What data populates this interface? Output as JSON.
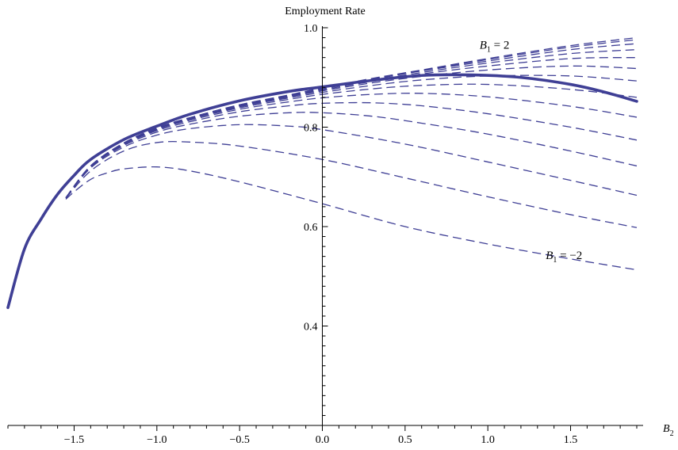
{
  "chart_data": {
    "type": "line",
    "title": "",
    "ylabel": "Employment Rate",
    "xlabel": "B",
    "xlabel_sub": "2",
    "xlim": [
      -1.9,
      1.9
    ],
    "ylim": [
      0.2,
      1.0
    ],
    "grid": false,
    "x_ticks": [
      -1.5,
      -1.0,
      -0.5,
      0.0,
      0.5,
      1.0,
      1.5
    ],
    "x_tick_labels": [
      "−1.5",
      "−1.0",
      "−0.5",
      "0.0",
      "0.5",
      "1.0",
      "1.5"
    ],
    "y_ticks": [
      0.4,
      0.6,
      0.8,
      1.0
    ],
    "y_tick_labels": [
      "0.4",
      "0.6",
      "0.8",
      "1.0"
    ],
    "annotations": [
      {
        "base": "B",
        "sub": "1",
        "rest": " = 2",
        "x": 0.95,
        "y": 0.958
      },
      {
        "base": "B",
        "sub": "1",
        "rest": " = −2",
        "x": 1.35,
        "y": 0.535
      }
    ],
    "series": [
      {
        "style": "solid",
        "x": [
          -1.9,
          -1.8,
          -1.7,
          -1.6,
          -1.5,
          -1.4,
          -1.2,
          -1.0,
          -0.8,
          -0.5,
          -0.2,
          0.0,
          0.3,
          0.6,
          0.9,
          1.2,
          1.5,
          1.7,
          1.9
        ],
        "y": [
          0.437,
          0.555,
          0.615,
          0.665,
          0.703,
          0.735,
          0.775,
          0.802,
          0.826,
          0.853,
          0.872,
          0.881,
          0.894,
          0.904,
          0.905,
          0.9,
          0.886,
          0.871,
          0.852
        ]
      },
      {
        "style": "dashed",
        "x": [
          -1.55,
          -1.5,
          -1.4,
          -1.3,
          -1.2,
          -1.0,
          -0.8,
          -0.5,
          0.0,
          0.5,
          1.0,
          1.5,
          1.9
        ],
        "y": [
          0.655,
          0.67,
          0.695,
          0.708,
          0.716,
          0.72,
          0.712,
          0.69,
          0.646,
          0.6,
          0.565,
          0.535,
          0.513
        ]
      },
      {
        "style": "dashed",
        "x": [
          -1.55,
          -1.4,
          -1.2,
          -1.0,
          -0.8,
          -0.5,
          0.0,
          0.5,
          1.0,
          1.5,
          1.9
        ],
        "y": [
          0.657,
          0.712,
          0.752,
          0.769,
          0.77,
          0.762,
          0.735,
          0.698,
          0.66,
          0.624,
          0.598
        ]
      },
      {
        "style": "dashed",
        "x": [
          -1.55,
          -1.4,
          -1.2,
          -1.0,
          -0.8,
          -0.5,
          -0.2,
          0.0,
          0.5,
          1.0,
          1.5,
          1.9
        ],
        "y": [
          0.657,
          0.718,
          0.76,
          0.784,
          0.797,
          0.805,
          0.802,
          0.795,
          0.766,
          0.73,
          0.693,
          0.663
        ]
      },
      {
        "style": "dashed",
        "x": [
          -1.55,
          -1.4,
          -1.2,
          -1.0,
          -0.8,
          -0.5,
          -0.2,
          0.0,
          0.3,
          0.6,
          1.0,
          1.5,
          1.9
        ],
        "y": [
          0.658,
          0.72,
          0.763,
          0.79,
          0.806,
          0.822,
          0.829,
          0.829,
          0.822,
          0.808,
          0.786,
          0.752,
          0.722
        ]
      },
      {
        "style": "dashed",
        "x": [
          -1.55,
          -1.4,
          -1.2,
          -1.0,
          -0.8,
          -0.5,
          -0.2,
          0.0,
          0.3,
          0.6,
          1.0,
          1.5,
          1.9
        ],
        "y": [
          0.658,
          0.721,
          0.765,
          0.793,
          0.811,
          0.831,
          0.843,
          0.848,
          0.849,
          0.843,
          0.827,
          0.8,
          0.774
        ]
      },
      {
        "style": "dashed",
        "x": [
          -1.55,
          -1.4,
          -1.2,
          -1.0,
          -0.8,
          -0.5,
          -0.2,
          0.0,
          0.3,
          0.6,
          1.0,
          1.5,
          1.9
        ],
        "y": [
          0.658,
          0.721,
          0.766,
          0.795,
          0.814,
          0.836,
          0.851,
          0.859,
          0.866,
          0.868,
          0.861,
          0.842,
          0.82
        ]
      },
      {
        "style": "dashed",
        "x": [
          -1.55,
          -1.4,
          -1.2,
          -1.0,
          -0.8,
          -0.5,
          -0.2,
          0.0,
          0.3,
          0.6,
          1.0,
          1.5,
          1.9
        ],
        "y": [
          0.658,
          0.722,
          0.767,
          0.796,
          0.816,
          0.839,
          0.856,
          0.866,
          0.877,
          0.884,
          0.886,
          0.876,
          0.86
        ]
      },
      {
        "style": "dashed",
        "x": [
          -1.55,
          -1.4,
          -1.2,
          -1.0,
          -0.8,
          -0.5,
          -0.2,
          0.0,
          0.3,
          0.6,
          1.0,
          1.5,
          1.9
        ],
        "y": [
          0.658,
          0.722,
          0.767,
          0.797,
          0.817,
          0.841,
          0.859,
          0.87,
          0.884,
          0.895,
          0.903,
          0.903,
          0.893
        ]
      },
      {
        "style": "dashed",
        "x": [
          -1.55,
          -1.4,
          -1.2,
          -1.0,
          -0.8,
          -0.5,
          -0.2,
          0.0,
          0.3,
          0.6,
          1.0,
          1.5,
          1.9
        ],
        "y": [
          0.658,
          0.722,
          0.768,
          0.797,
          0.818,
          0.842,
          0.861,
          0.873,
          0.889,
          0.902,
          0.915,
          0.923,
          0.918
        ]
      },
      {
        "style": "dashed",
        "x": [
          -1.55,
          -1.4,
          -1.2,
          -1.0,
          -0.8,
          -0.5,
          -0.2,
          0.0,
          0.3,
          0.6,
          1.0,
          1.5,
          1.9
        ],
        "y": [
          0.658,
          0.722,
          0.768,
          0.798,
          0.818,
          0.843,
          0.862,
          0.875,
          0.892,
          0.907,
          0.923,
          0.938,
          0.94
        ]
      },
      {
        "style": "dashed",
        "x": [
          -1.55,
          -1.4,
          -1.2,
          -1.0,
          -0.8,
          -0.5,
          -0.2,
          0.0,
          0.3,
          0.6,
          1.0,
          1.5,
          1.9
        ],
        "y": [
          0.658,
          0.722,
          0.768,
          0.798,
          0.819,
          0.844,
          0.863,
          0.877,
          0.894,
          0.91,
          0.929,
          0.948,
          0.956
        ]
      },
      {
        "style": "dashed",
        "x": [
          -1.55,
          -1.4,
          -1.2,
          -1.0,
          -0.8,
          -0.5,
          -0.2,
          0.0,
          0.3,
          0.6,
          1.0,
          1.5,
          1.9
        ],
        "y": [
          0.658,
          0.722,
          0.768,
          0.798,
          0.819,
          0.844,
          0.864,
          0.878,
          0.896,
          0.913,
          0.933,
          0.956,
          0.968
        ]
      },
      {
        "style": "dashed",
        "x": [
          -1.55,
          -1.4,
          -1.2,
          -1.0,
          -0.8,
          -0.5,
          -0.2,
          0.0,
          0.3,
          0.6,
          1.0,
          1.5,
          1.9
        ],
        "y": [
          0.658,
          0.722,
          0.768,
          0.798,
          0.819,
          0.845,
          0.864,
          0.879,
          0.897,
          0.914,
          0.936,
          0.961,
          0.976
        ]
      },
      {
        "style": "dashed",
        "x": [
          -1.55,
          -1.4,
          -1.2,
          -1.0,
          -0.8,
          -0.5,
          -0.2,
          0.0,
          0.3,
          0.6,
          1.0,
          1.5,
          1.9
        ],
        "y": [
          0.658,
          0.722,
          0.768,
          0.798,
          0.819,
          0.845,
          0.865,
          0.879,
          0.898,
          0.915,
          0.938,
          0.964,
          0.98
        ]
      }
    ],
    "colors": {
      "line": "#3f3f95",
      "axis": "#000000"
    }
  }
}
